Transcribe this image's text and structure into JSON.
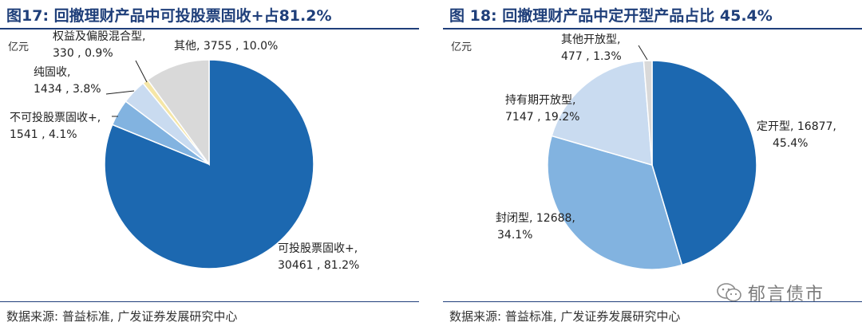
{
  "watermark": {
    "text": "郁言债市"
  },
  "chart_data": [
    {
      "type": "pie",
      "title": "图17:  回撤理财产品中可投股票固收+占81.2%",
      "unit": "亿元",
      "source": "数据来源:  普益标准,  广发证券发展研究中心",
      "slices": [
        {
          "name": "可投股票固收+",
          "value": 30461,
          "pct": "81.2%",
          "color": "#1c68b0"
        },
        {
          "name": "不可投股票固收+",
          "value": 1541,
          "pct": "4.1%",
          "color": "#82b3e0"
        },
        {
          "name": "纯固收",
          "value": 1434,
          "pct": "3.8%",
          "color": "#c9dbf0"
        },
        {
          "name": "权益及偏股混合型",
          "value": 330,
          "pct": "0.9%",
          "color": "#f5e6a6"
        },
        {
          "name": "其他",
          "value": 3755,
          "pct": "10.0%",
          "color": "#d9d9d9"
        }
      ]
    },
    {
      "type": "pie",
      "title": "图 18:  回撤理财产品中定开型产品占比 45.4%",
      "unit": "亿元",
      "source": "数据来源:  普益标准,  广发证券发展研究中心",
      "slices": [
        {
          "name": "定开型",
          "value": 16877,
          "pct": "45.4%",
          "color": "#1c68b0"
        },
        {
          "name": "封闭型",
          "value": 12688,
          "pct": "34.1%",
          "color": "#82b3e0"
        },
        {
          "name": "持有期开放型",
          "value": 7147,
          "pct": "19.2%",
          "color": "#c9dbf0"
        },
        {
          "name": "其他开放型",
          "value": 477,
          "pct": "1.3%",
          "color": "#d9d9d9"
        }
      ]
    }
  ]
}
